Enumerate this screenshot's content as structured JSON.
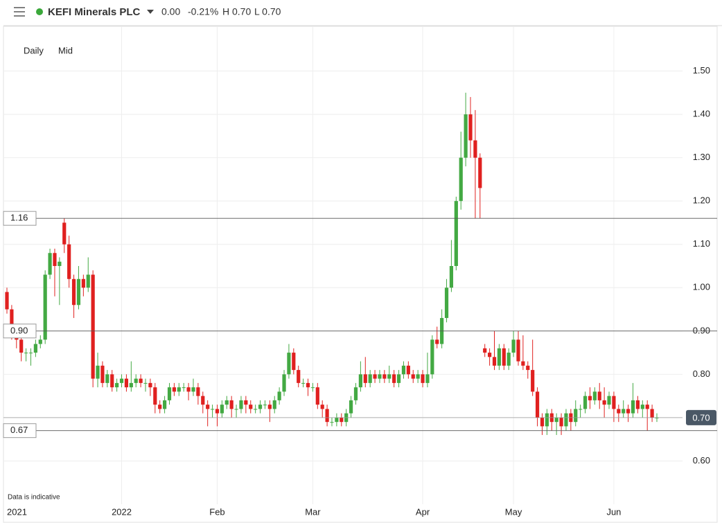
{
  "header": {
    "title": "KEFI Minerals PLC",
    "change": "0.00",
    "change_pct": "-0.21%",
    "high": "H 0.70",
    "low": "L 0.70"
  },
  "chart_data": {
    "type": "candlestick",
    "interval": "Daily",
    "price_type": "Mid",
    "note": "Data is indicative",
    "up_color": "#43a943",
    "down_color": "#e0201f",
    "open": [
      0.99,
      0.95,
      0.9,
      0.88,
      0.85,
      0.85,
      0.85,
      0.87,
      0.88,
      1.03,
      1.08,
      1.05,
      1.15,
      1.1,
      1.02,
      0.96,
      1.02,
      1.0,
      1.03,
      0.79,
      0.82,
      0.78,
      0.8,
      0.77,
      0.78,
      0.79,
      0.77,
      0.78,
      0.79,
      0.78,
      0.78,
      0.77,
      0.73,
      0.72,
      0.74,
      0.77,
      0.76,
      0.77,
      0.77,
      0.76,
      0.77,
      0.75,
      0.73,
      0.72,
      0.72,
      0.71,
      0.73,
      0.74,
      0.72,
      0.72,
      0.74,
      0.73,
      0.72,
      0.72,
      0.73,
      0.73,
      0.72,
      0.74,
      0.76,
      0.8,
      0.85,
      0.81,
      0.78,
      0.78,
      0.77,
      0.77,
      0.73,
      0.72,
      0.69,
      0.69,
      0.7,
      0.69,
      0.71,
      0.74,
      0.77,
      0.8,
      0.78,
      0.8,
      0.79,
      0.8,
      0.79,
      0.8,
      0.78,
      0.8,
      0.82,
      0.8,
      0.79,
      0.8,
      0.78,
      0.8,
      0.88,
      0.87,
      0.93,
      1.0,
      1.05,
      1.2,
      1.3,
      1.4,
      1.34,
      1.3,
      0.86,
      0.85,
      0.84,
      0.82,
      0.86,
      0.82,
      0.85,
      0.88,
      0.83,
      0.82,
      0.81,
      0.76,
      0.7,
      0.68,
      0.71,
      0.69,
      0.7,
      0.68,
      0.71,
      0.69,
      0.72,
      0.72,
      0.75,
      0.74,
      0.76,
      0.74,
      0.73,
      0.75,
      0.72,
      0.71,
      0.72,
      0.71,
      0.74,
      0.72,
      0.73,
      0.72,
      0.7
    ],
    "high": [
      1.0,
      0.96,
      0.91,
      0.89,
      0.86,
      0.86,
      0.88,
      0.89,
      1.04,
      1.09,
      1.09,
      1.07,
      1.16,
      1.12,
      1.03,
      1.05,
      1.03,
      1.07,
      1.04,
      0.85,
      0.83,
      0.81,
      0.81,
      0.79,
      0.8,
      0.8,
      0.83,
      0.8,
      0.8,
      0.79,
      0.79,
      0.78,
      0.74,
      0.75,
      0.78,
      0.78,
      0.78,
      0.78,
      0.78,
      0.79,
      0.78,
      0.76,
      0.74,
      0.73,
      0.73,
      0.74,
      0.75,
      0.75,
      0.73,
      0.75,
      0.75,
      0.74,
      0.73,
      0.74,
      0.74,
      0.74,
      0.75,
      0.77,
      0.81,
      0.87,
      0.86,
      0.82,
      0.79,
      0.79,
      0.78,
      0.78,
      0.74,
      0.73,
      0.7,
      0.71,
      0.71,
      0.72,
      0.75,
      0.78,
      0.83,
      0.84,
      0.81,
      0.81,
      0.81,
      0.81,
      0.82,
      0.81,
      0.81,
      0.83,
      0.83,
      0.81,
      0.81,
      0.81,
      0.85,
      0.89,
      0.91,
      0.95,
      1.02,
      1.11,
      1.21,
      1.36,
      1.45,
      1.44,
      1.41,
      1.31,
      0.87,
      0.86,
      0.9,
      0.87,
      0.87,
      0.86,
      0.9,
      0.9,
      0.89,
      0.83,
      0.88,
      0.77,
      0.71,
      0.72,
      0.72,
      0.71,
      0.71,
      0.72,
      0.72,
      0.74,
      0.73,
      0.76,
      0.77,
      0.77,
      0.78,
      0.77,
      0.76,
      0.76,
      0.73,
      0.74,
      0.73,
      0.78,
      0.75,
      0.74,
      0.74,
      0.73,
      0.71
    ],
    "low": [
      0.94,
      0.88,
      0.86,
      0.83,
      0.83,
      0.82,
      0.84,
      0.86,
      0.87,
      1.02,
      0.98,
      0.96,
      1.08,
      1.0,
      0.93,
      0.95,
      0.98,
      0.99,
      0.77,
      0.77,
      0.77,
      0.77,
      0.76,
      0.76,
      0.77,
      0.76,
      0.76,
      0.77,
      0.77,
      0.76,
      0.75,
      0.71,
      0.71,
      0.71,
      0.73,
      0.75,
      0.75,
      0.76,
      0.74,
      0.75,
      0.73,
      0.71,
      0.68,
      0.7,
      0.68,
      0.7,
      0.72,
      0.7,
      0.7,
      0.71,
      0.71,
      0.71,
      0.71,
      0.71,
      0.72,
      0.69,
      0.71,
      0.73,
      0.75,
      0.79,
      0.8,
      0.77,
      0.77,
      0.75,
      0.76,
      0.72,
      0.7,
      0.68,
      0.68,
      0.68,
      0.68,
      0.68,
      0.7,
      0.73,
      0.76,
      0.77,
      0.77,
      0.78,
      0.78,
      0.78,
      0.78,
      0.77,
      0.77,
      0.79,
      0.79,
      0.78,
      0.78,
      0.77,
      0.77,
      0.79,
      0.86,
      0.86,
      0.92,
      0.99,
      1.04,
      1.18,
      1.28,
      1.3,
      1.16,
      1.16,
      0.84,
      0.82,
      0.81,
      0.81,
      0.81,
      0.81,
      0.84,
      0.82,
      0.81,
      0.79,
      0.75,
      0.68,
      0.66,
      0.66,
      0.67,
      0.66,
      0.66,
      0.67,
      0.67,
      0.68,
      0.7,
      0.71,
      0.72,
      0.73,
      0.72,
      0.7,
      0.72,
      0.69,
      0.69,
      0.7,
      0.69,
      0.7,
      0.71,
      0.7,
      0.67,
      0.69,
      0.69
    ],
    "close": [
      0.95,
      0.9,
      0.88,
      0.85,
      0.85,
      0.85,
      0.87,
      0.88,
      1.03,
      1.08,
      1.05,
      1.06,
      1.1,
      1.02,
      0.96,
      1.02,
      1.0,
      1.03,
      0.79,
      0.82,
      0.78,
      0.8,
      0.77,
      0.78,
      0.79,
      0.77,
      0.78,
      0.79,
      0.78,
      0.78,
      0.77,
      0.73,
      0.72,
      0.74,
      0.77,
      0.76,
      0.77,
      0.77,
      0.76,
      0.77,
      0.75,
      0.73,
      0.72,
      0.72,
      0.71,
      0.73,
      0.74,
      0.72,
      0.72,
      0.74,
      0.73,
      0.72,
      0.72,
      0.73,
      0.73,
      0.72,
      0.74,
      0.76,
      0.8,
      0.85,
      0.81,
      0.78,
      0.78,
      0.77,
      0.77,
      0.73,
      0.72,
      0.69,
      0.69,
      0.7,
      0.69,
      0.71,
      0.74,
      0.77,
      0.8,
      0.78,
      0.8,
      0.79,
      0.8,
      0.79,
      0.8,
      0.78,
      0.8,
      0.82,
      0.8,
      0.79,
      0.8,
      0.78,
      0.8,
      0.88,
      0.87,
      0.93,
      1.0,
      1.05,
      1.2,
      1.3,
      1.4,
      1.34,
      1.3,
      1.23,
      0.85,
      0.84,
      0.82,
      0.86,
      0.82,
      0.85,
      0.88,
      0.83,
      0.82,
      0.81,
      0.76,
      0.7,
      0.68,
      0.71,
      0.69,
      0.7,
      0.68,
      0.71,
      0.69,
      0.72,
      0.72,
      0.75,
      0.74,
      0.76,
      0.74,
      0.73,
      0.75,
      0.72,
      0.71,
      0.72,
      0.71,
      0.74,
      0.72,
      0.73,
      0.72,
      0.7,
      0.7
    ],
    "xlim": [
      0,
      136
    ],
    "xticks": [
      {
        "value": 2,
        "label": "2021"
      },
      {
        "value": 24,
        "label": "2022"
      },
      {
        "value": 44,
        "label": "Feb"
      },
      {
        "value": 64,
        "label": "Mar"
      },
      {
        "value": 87,
        "label": "Apr"
      },
      {
        "value": 106,
        "label": "May"
      },
      {
        "value": 127,
        "label": "Jun"
      }
    ],
    "ylim": [
      0.5,
      1.6
    ],
    "yticks": [
      {
        "value": 0.6,
        "label": "0.60"
      },
      {
        "value": 0.7,
        "label": "0.70"
      },
      {
        "value": 0.8,
        "label": "0.80"
      },
      {
        "value": 0.9,
        "label": "0.90"
      },
      {
        "value": 1.0,
        "label": "1.00"
      },
      {
        "value": 1.1,
        "label": "1.10"
      },
      {
        "value": 1.2,
        "label": "1.20"
      },
      {
        "value": 1.3,
        "label": "1.30"
      },
      {
        "value": 1.4,
        "label": "1.40"
      },
      {
        "value": 1.5,
        "label": "1.50"
      }
    ],
    "levels": [
      {
        "value": 1.16,
        "label": "1.16"
      },
      {
        "value": 0.9,
        "label": "0.90"
      },
      {
        "value": 0.67,
        "label": "0.67"
      }
    ],
    "last_price": {
      "value": 0.7,
      "label": "0.70"
    },
    "grid": true
  }
}
